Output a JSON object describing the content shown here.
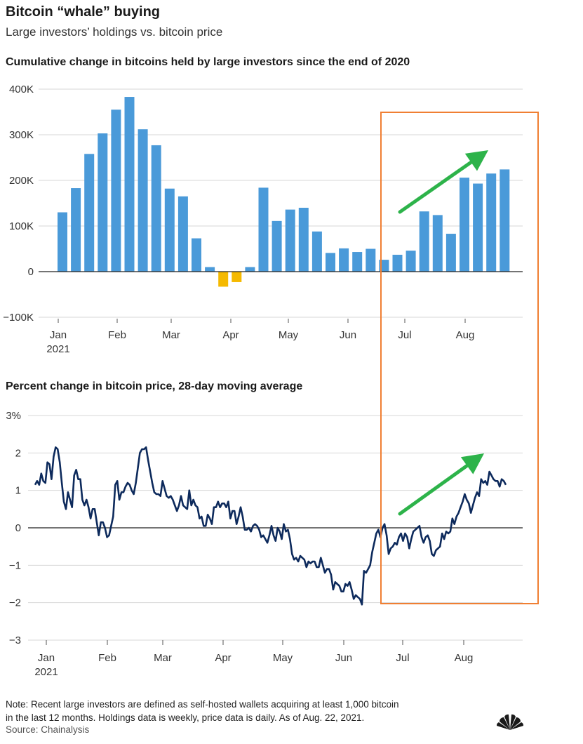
{
  "header": {
    "title": "Bitcoin “whale” buying",
    "subtitle": "Large investors’ holdings vs. bitcoin price"
  },
  "footer": {
    "note_line1": "Note: Recent large investors are defined as self-hosted wallets acquiring at least 1,000 bitcoin",
    "note_line2": "in the last 12 months. Holdings data is weekly, price data is daily. As of Aug. 22, 2021.",
    "source": "Source: Chainalysis",
    "logo_text": "CNBC"
  },
  "colors": {
    "bar_positive": "#4a9ad9",
    "bar_negative": "#f5b900",
    "line": "#0d2a5c",
    "highlight_box": "#f07f33",
    "arrow": "#2db34a",
    "grid": "#d7d7d7",
    "zero_line": "#222222"
  },
  "chart_data": [
    {
      "type": "bar",
      "title": "Cumulative change in bitcoins held by large investors since the end of 2020",
      "ylim": [
        -100000,
        400000
      ],
      "yticks": [
        -100000,
        0,
        100000,
        200000,
        300000,
        400000
      ],
      "ytick_labels": [
        "−100K",
        "0",
        "100K",
        "200K",
        "300K",
        "400K"
      ],
      "xtick_labels": [
        "Jan",
        "Feb",
        "Mar",
        "Apr",
        "May",
        "Jun",
        "Jul",
        "Aug"
      ],
      "x_year_label": "2021",
      "grid": true,
      "values": [
        130000,
        183000,
        258000,
        303000,
        355000,
        383000,
        312000,
        277000,
        182000,
        165000,
        73000,
        10000,
        -33000,
        -23000,
        10000,
        184000,
        111000,
        136000,
        140000,
        88000,
        41000,
        51000,
        43000,
        50000,
        26000,
        37000,
        46000,
        132000,
        124000,
        83000,
        206000,
        193000,
        215000,
        224000
      ]
    },
    {
      "type": "line",
      "title": "Percent change in bitcoin price, 28-day moving average",
      "ylim": [
        -3,
        3
      ],
      "yticks": [
        -3,
        -2,
        -1,
        0,
        1,
        2,
        3
      ],
      "ytick_labels": [
        "−3",
        "−2",
        "−1",
        "0",
        "1",
        "2",
        "3%"
      ],
      "xtick_labels": [
        "Jan",
        "Feb",
        "Mar",
        "Apr",
        "May",
        "Jun",
        "Jul",
        "Aug"
      ],
      "x_year_label": "2021",
      "grid": true,
      "values": [
        1.15,
        1.25,
        1.15,
        1.45,
        1.25,
        1.2,
        1.75,
        1.7,
        1.3,
        1.9,
        2.15,
        2.1,
        1.75,
        1.2,
        0.7,
        0.5,
        0.95,
        0.75,
        0.55,
        1.4,
        1.55,
        1.3,
        1.3,
        0.75,
        0.6,
        0.75,
        0.55,
        0.25,
        0.5,
        0.5,
        0.15,
        -0.2,
        0.15,
        0.15,
        0.0,
        -0.25,
        -0.2,
        0.05,
        0.3,
        1.15,
        1.25,
        0.75,
        0.95,
        0.95,
        1.1,
        1.2,
        1.15,
        1.0,
        0.9,
        1.2,
        1.6,
        2.0,
        2.1,
        2.1,
        2.15,
        1.8,
        1.5,
        1.2,
        0.95,
        0.9,
        0.9,
        0.85,
        1.25,
        1.05,
        0.85,
        0.8,
        0.85,
        0.75,
        0.6,
        0.45,
        0.6,
        0.85,
        0.6,
        0.55,
        0.5,
        1.0,
        0.6,
        0.75,
        0.6,
        0.55,
        0.25,
        0.3,
        0.05,
        0.05,
        0.35,
        0.25,
        0.1,
        0.55,
        0.55,
        0.7,
        0.55,
        0.65,
        0.65,
        0.55,
        0.7,
        0.25,
        0.45,
        0.45,
        0.1,
        0.3,
        0.55,
        0.3,
        -0.05,
        -0.05,
        0.0,
        -0.1,
        0.05,
        0.1,
        0.05,
        -0.05,
        -0.25,
        -0.2,
        -0.3,
        -0.4,
        -0.2,
        0.05,
        -0.2,
        -0.35,
        0.0,
        -0.1,
        -0.3,
        0.1,
        -0.1,
        -0.05,
        -0.3,
        -0.7,
        -0.85,
        -0.8,
        -0.9,
        -0.75,
        -0.8,
        -0.85,
        -1.05,
        -0.9,
        -0.95,
        -0.9,
        -0.9,
        -1.05,
        -1.05,
        -0.8,
        -1.0,
        -1.2,
        -1.1,
        -1.1,
        -1.25,
        -1.65,
        -1.45,
        -1.5,
        -1.55,
        -1.7,
        -1.7,
        -1.5,
        -1.55,
        -1.45,
        -1.65,
        -1.9,
        -1.8,
        -1.85,
        -1.9,
        -2.05,
        -1.15,
        -1.2,
        -1.1,
        -1.0,
        -0.65,
        -0.4,
        -0.15,
        -0.05,
        -0.25,
        0.0,
        0.1,
        -0.2,
        -0.7,
        -0.55,
        -0.5,
        -0.4,
        -0.45,
        -0.25,
        -0.15,
        -0.35,
        -0.15,
        -0.25,
        -0.55,
        -0.3,
        -0.1,
        -0.05,
        0.0,
        0.05,
        -0.25,
        -0.4,
        -0.25,
        -0.2,
        -0.35,
        -0.7,
        -0.75,
        -0.6,
        -0.55,
        -0.5,
        -0.15,
        -0.3,
        -0.1,
        -0.15,
        -0.1,
        0.25,
        0.1,
        0.3,
        0.4,
        0.55,
        0.7,
        0.9,
        0.75,
        0.65,
        0.4,
        0.6,
        0.8,
        0.95,
        0.85,
        1.3,
        1.2,
        1.25,
        1.15,
        1.5,
        1.4,
        1.3,
        1.25,
        1.25,
        1.1,
        1.3,
        1.25,
        1.15
      ]
    }
  ]
}
